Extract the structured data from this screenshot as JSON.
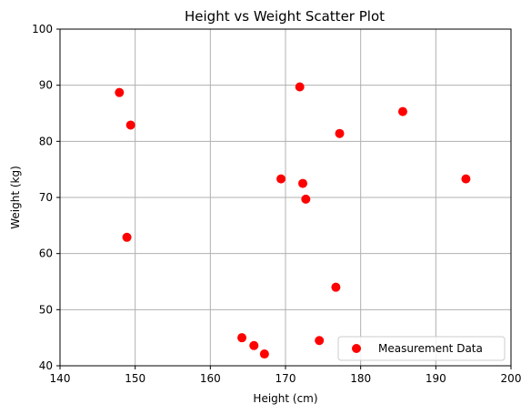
{
  "chart_data": {
    "type": "scatter",
    "title": "Height vs Weight Scatter Plot",
    "xlabel": "Height (cm)",
    "ylabel": "Weight (kg)",
    "xlim": [
      140,
      200
    ],
    "ylim": [
      40,
      100
    ],
    "xticks": [
      "140",
      "150",
      "160",
      "170",
      "180",
      "190",
      "200"
    ],
    "yticks": [
      "40",
      "50",
      "60",
      "70",
      "80",
      "90",
      "100"
    ],
    "grid": true,
    "legend_position": "bottom-right",
    "series": [
      {
        "name": "Measurement Data",
        "color": "#ff0000",
        "points": [
          {
            "x": 147.9,
            "y": 88.7
          },
          {
            "x": 149.4,
            "y": 82.9
          },
          {
            "x": 148.9,
            "y": 62.9
          },
          {
            "x": 164.2,
            "y": 45.0
          },
          {
            "x": 165.8,
            "y": 43.6
          },
          {
            "x": 167.2,
            "y": 42.1
          },
          {
            "x": 169.4,
            "y": 73.3
          },
          {
            "x": 171.9,
            "y": 89.7
          },
          {
            "x": 172.3,
            "y": 72.5
          },
          {
            "x": 172.7,
            "y": 69.7
          },
          {
            "x": 174.5,
            "y": 44.5
          },
          {
            "x": 176.7,
            "y": 54.0
          },
          {
            "x": 177.2,
            "y": 81.4
          },
          {
            "x": 185.6,
            "y": 85.3
          },
          {
            "x": 194.0,
            "y": 73.3
          }
        ]
      }
    ]
  }
}
